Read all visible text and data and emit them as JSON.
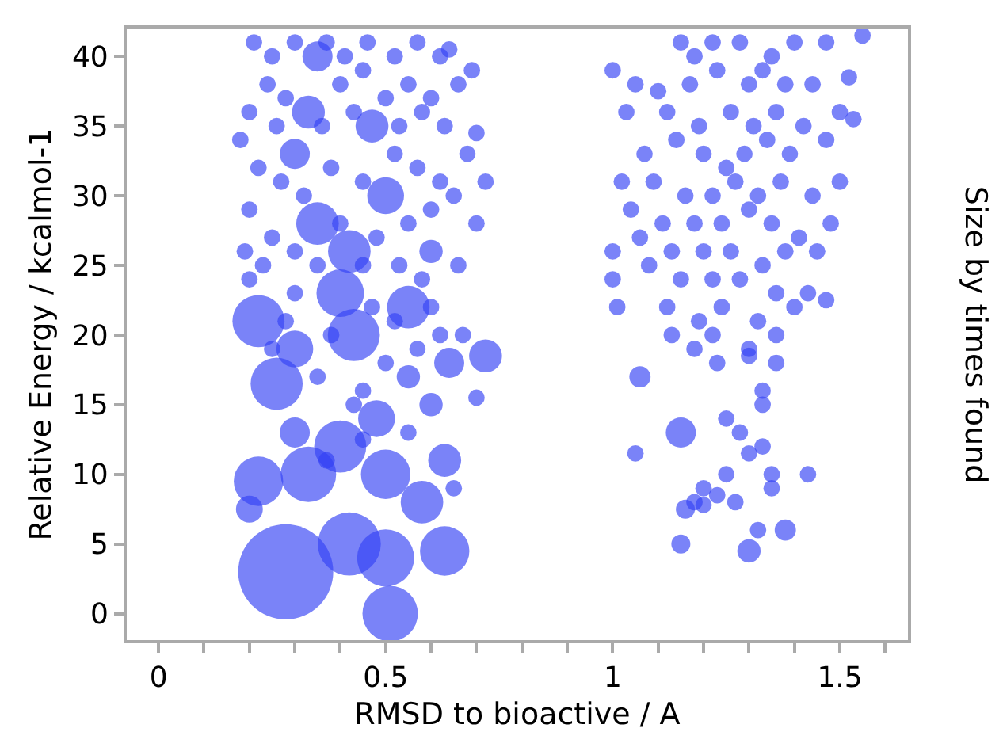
{
  "chart_data": {
    "type": "bubble",
    "xlabel": "RMSD to bioactive / A",
    "ylabel": "Relative Energy / kcalmol-1",
    "annotations": [
      "Size by times found"
    ],
    "xlim": [
      -0.07,
      1.65
    ],
    "ylim": [
      -1.9,
      42
    ],
    "xticks": [
      0,
      {
        "value": 0.1,
        "label": null
      },
      {
        "value": 0.2,
        "label": null
      },
      {
        "value": 0.3,
        "label": null
      },
      {
        "value": 0.4,
        "label": null
      },
      0.5,
      {
        "value": 0.6,
        "label": null
      },
      {
        "value": 0.7,
        "label": null
      },
      {
        "value": 0.8,
        "label": null
      },
      {
        "value": 0.9,
        "label": null
      },
      1,
      {
        "value": 1.1,
        "label": null
      },
      {
        "value": 1.2,
        "label": null
      },
      {
        "value": 1.3,
        "label": null
      },
      {
        "value": 1.4,
        "label": null
      },
      1.5,
      {
        "value": 1.6,
        "label": null
      }
    ],
    "yticks": [
      0,
      5,
      10,
      15,
      20,
      25,
      30,
      35,
      40
    ],
    "marker": "circle",
    "series": [
      {
        "color": "#3340f5",
        "x": [
          0.28,
          0.51,
          0.42,
          0.5,
          0.63,
          0.33,
          0.22,
          0.4,
          0.58,
          0.5,
          0.26,
          0.22,
          0.3,
          0.43,
          0.48,
          0.63,
          0.72,
          0.4,
          0.55,
          0.35,
          0.42,
          0.5,
          0.33,
          0.47,
          0.35,
          0.3,
          0.6,
          0.2,
          0.3,
          0.55,
          0.64,
          0.6,
          0.21,
          0.25,
          0.3,
          0.37,
          0.41,
          0.46,
          0.52,
          0.57,
          0.62,
          0.64,
          0.69,
          0.24,
          0.28,
          0.4,
          0.45,
          0.5,
          0.55,
          0.6,
          0.66,
          0.2,
          0.26,
          0.36,
          0.43,
          0.53,
          0.58,
          0.63,
          0.7,
          0.18,
          0.22,
          0.27,
          0.32,
          0.38,
          0.45,
          0.52,
          0.57,
          0.62,
          0.68,
          0.72,
          0.2,
          0.25,
          0.3,
          0.4,
          0.48,
          0.55,
          0.6,
          0.65,
          0.7,
          0.19,
          0.23,
          0.35,
          0.45,
          0.53,
          0.58,
          0.66,
          0.2,
          0.3,
          0.47,
          0.52,
          0.6,
          0.67,
          0.25,
          0.35,
          0.45,
          0.5,
          0.57,
          0.62,
          0.7,
          0.28,
          0.38,
          0.43,
          0.45,
          0.55,
          0.37,
          0.65,
          1.15,
          1.18,
          1.22,
          1.28,
          1.35,
          1.4,
          1.47,
          1.55,
          1.0,
          1.05,
          1.1,
          1.17,
          1.23,
          1.3,
          1.33,
          1.38,
          1.44,
          1.52,
          1.03,
          1.12,
          1.19,
          1.26,
          1.31,
          1.36,
          1.42,
          1.5,
          1.07,
          1.14,
          1.2,
          1.25,
          1.29,
          1.34,
          1.39,
          1.47,
          1.53,
          1.02,
          1.09,
          1.16,
          1.22,
          1.27,
          1.32,
          1.37,
          1.44,
          1.5,
          1.04,
          1.11,
          1.18,
          1.24,
          1.3,
          1.35,
          1.41,
          1.48,
          1.0,
          1.06,
          1.13,
          1.2,
          1.26,
          1.33,
          1.38,
          1.45,
          1.0,
          1.08,
          1.15,
          1.22,
          1.28,
          1.36,
          1.43,
          1.01,
          1.12,
          1.19,
          1.24,
          1.32,
          1.4,
          1.47,
          1.13,
          1.18,
          1.22,
          1.3,
          1.36,
          1.23,
          1.3,
          1.36,
          1.33,
          1.33,
          1.25,
          1.05,
          1.3,
          1.28,
          1.33,
          1.35,
          1.25,
          1.2,
          1.18,
          1.23,
          1.27,
          1.35,
          1.43,
          1.32,
          1.15,
          1.06,
          1.3,
          1.38,
          1.15,
          1.16,
          1.2
        ],
        "values": [
          3,
          0,
          5,
          4,
          4.5,
          10,
          9.5,
          12,
          8,
          10,
          16.5,
          21,
          19,
          20,
          14,
          11,
          18.5,
          23,
          22,
          28,
          26,
          30,
          36,
          35,
          40,
          33,
          26,
          7.5,
          13,
          17,
          18,
          15,
          41,
          40,
          41,
          41,
          40,
          41,
          40,
          41,
          40,
          40.5,
          39,
          38,
          37,
          38,
          39,
          37,
          38,
          37,
          38,
          36,
          35,
          35,
          36,
          35,
          36,
          35,
          34.5,
          34,
          32,
          31,
          30,
          32,
          31,
          33,
          32,
          31,
          33,
          31,
          29,
          27,
          26,
          28,
          27,
          28,
          29,
          30,
          28,
          26,
          25,
          25,
          25,
          25,
          24,
          25,
          24,
          23,
          22,
          21,
          22,
          20,
          19,
          17,
          16,
          18,
          19,
          20,
          15.5,
          21,
          20,
          15,
          12.5,
          13,
          11,
          9,
          41,
          40,
          41,
          41,
          40,
          41,
          41,
          41.5,
          39,
          38,
          37.5,
          38,
          39,
          38,
          39,
          38,
          38,
          38.5,
          36,
          36,
          35,
          36,
          35,
          36,
          35,
          36,
          33,
          34,
          33,
          32,
          33,
          34,
          33,
          34,
          35.5,
          31,
          31,
          30,
          30,
          31,
          30,
          31,
          30,
          31,
          29,
          28,
          28,
          28,
          29,
          28,
          27,
          28,
          26,
          27,
          26,
          26,
          26,
          25,
          26,
          26,
          24,
          25,
          24,
          24,
          24,
          23,
          23,
          22,
          22,
          21,
          22,
          21,
          22,
          22.5,
          20,
          19,
          20,
          19,
          20,
          18,
          18.5,
          18,
          16,
          15,
          14,
          11.5,
          11.5,
          13,
          12,
          10,
          10,
          9,
          8,
          8.5,
          8,
          9,
          10,
          6,
          13,
          17,
          4.5,
          6,
          5,
          7.5,
          7.8
        ],
        "sizes": [
          1,
          0.34,
          0.44,
          0.36,
          0.27,
          0.34,
          0.27,
          0.3,
          0.2,
          0.27,
          0.3,
          0.3,
          0.15,
          0.3,
          0.15,
          0.12,
          0.12,
          0.25,
          0.2,
          0.2,
          0.2,
          0.15,
          0.12,
          0.12,
          0.1,
          0.1,
          0.06,
          0.08,
          0.1,
          0.06,
          0.1,
          0.06,
          0.03,
          0.03,
          0.03,
          0.03,
          0.03,
          0.03,
          0.03,
          0.03,
          0.03,
          0.03,
          0.03,
          0.03,
          0.03,
          0.03,
          0.03,
          0.03,
          0.03,
          0.03,
          0.03,
          0.03,
          0.03,
          0.03,
          0.03,
          0.03,
          0.03,
          0.03,
          0.03,
          0.03,
          0.03,
          0.03,
          0.03,
          0.03,
          0.03,
          0.03,
          0.03,
          0.03,
          0.03,
          0.03,
          0.03,
          0.03,
          0.03,
          0.03,
          0.03,
          0.03,
          0.03,
          0.03,
          0.03,
          0.03,
          0.03,
          0.03,
          0.03,
          0.03,
          0.03,
          0.03,
          0.03,
          0.03,
          0.03,
          0.03,
          0.03,
          0.03,
          0.03,
          0.03,
          0.03,
          0.03,
          0.03,
          0.03,
          0.03,
          0.03,
          0.03,
          0.03,
          0.03,
          0.03,
          0.03,
          0.03,
          0.03,
          0.03,
          0.03,
          0.03,
          0.03,
          0.03,
          0.03,
          0.03,
          0.03,
          0.03,
          0.03,
          0.03,
          0.03,
          0.03,
          0.03,
          0.03,
          0.03,
          0.03,
          0.03,
          0.03,
          0.03,
          0.03,
          0.03,
          0.03,
          0.03,
          0.03,
          0.03,
          0.03,
          0.03,
          0.03,
          0.03,
          0.03,
          0.03,
          0.03,
          0.03,
          0.03,
          0.03,
          0.03,
          0.03,
          0.03,
          0.03,
          0.03,
          0.03,
          0.03,
          0.03,
          0.03,
          0.03,
          0.03,
          0.03,
          0.03,
          0.03,
          0.03,
          0.03,
          0.03,
          0.03,
          0.03,
          0.03,
          0.03,
          0.03,
          0.03,
          0.03,
          0.03,
          0.03,
          0.03,
          0.03,
          0.03,
          0.03,
          0.03,
          0.03,
          0.03,
          0.03,
          0.03,
          0.03,
          0.03,
          0.03,
          0.03,
          0.03,
          0.03,
          0.03,
          0.03,
          0.03,
          0.03,
          0.03,
          0.03,
          0.03,
          0.03,
          0.03,
          0.03,
          0.03,
          0.03,
          0.03,
          0.03,
          0.03,
          0.03,
          0.03,
          0.03,
          0.03,
          0.03,
          0.1,
          0.05,
          0.06,
          0.05,
          0.04,
          0.04,
          0.03
        ]
      }
    ]
  }
}
